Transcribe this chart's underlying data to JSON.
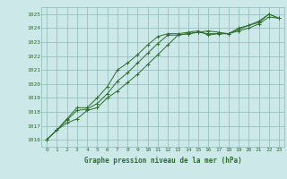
{
  "x": [
    0,
    1,
    2,
    3,
    4,
    5,
    6,
    7,
    8,
    9,
    10,
    11,
    12,
    13,
    14,
    15,
    16,
    17,
    18,
    19,
    20,
    21,
    22,
    23
  ],
  "line1": [
    1016.0,
    1016.7,
    1017.2,
    1017.5,
    1018.1,
    1018.3,
    1019.0,
    1019.5,
    1020.1,
    1020.7,
    1021.4,
    1022.1,
    1022.8,
    1023.5,
    1023.6,
    1023.7,
    1023.8,
    1023.7,
    1023.6,
    1023.9,
    1024.2,
    1024.4,
    1025.0,
    1024.7
  ],
  "line2": [
    1016.0,
    1016.7,
    1017.4,
    1018.1,
    1018.2,
    1018.6,
    1019.3,
    1020.2,
    1020.8,
    1021.5,
    1022.2,
    1022.9,
    1023.5,
    1023.5,
    1023.6,
    1023.7,
    1023.6,
    1023.6,
    1023.6,
    1023.8,
    1024.0,
    1024.3,
    1024.8,
    1024.7
  ],
  "line3": [
    1016.0,
    1016.7,
    1017.5,
    1018.3,
    1018.3,
    1019.0,
    1019.8,
    1021.0,
    1021.5,
    1022.1,
    1022.8,
    1023.4,
    1023.6,
    1023.6,
    1023.7,
    1023.8,
    1023.5,
    1023.6,
    1023.6,
    1024.0,
    1024.2,
    1024.5,
    1025.0,
    1024.7
  ],
  "line_color": "#2d6e2d",
  "bg_color": "#cce8e8",
  "grid_color": "#88bbbb",
  "text_color": "#2d6e2d",
  "xlabel": "Graphe pression niveau de la mer (hPa)",
  "ylim": [
    1015.5,
    1025.5
  ],
  "yticks": [
    1016,
    1017,
    1018,
    1019,
    1020,
    1021,
    1022,
    1023,
    1024,
    1025
  ],
  "xlim": [
    -0.5,
    23.5
  ],
  "xticks": [
    0,
    1,
    2,
    3,
    4,
    5,
    6,
    7,
    8,
    9,
    10,
    11,
    12,
    13,
    14,
    15,
    16,
    17,
    18,
    19,
    20,
    21,
    22,
    23
  ]
}
